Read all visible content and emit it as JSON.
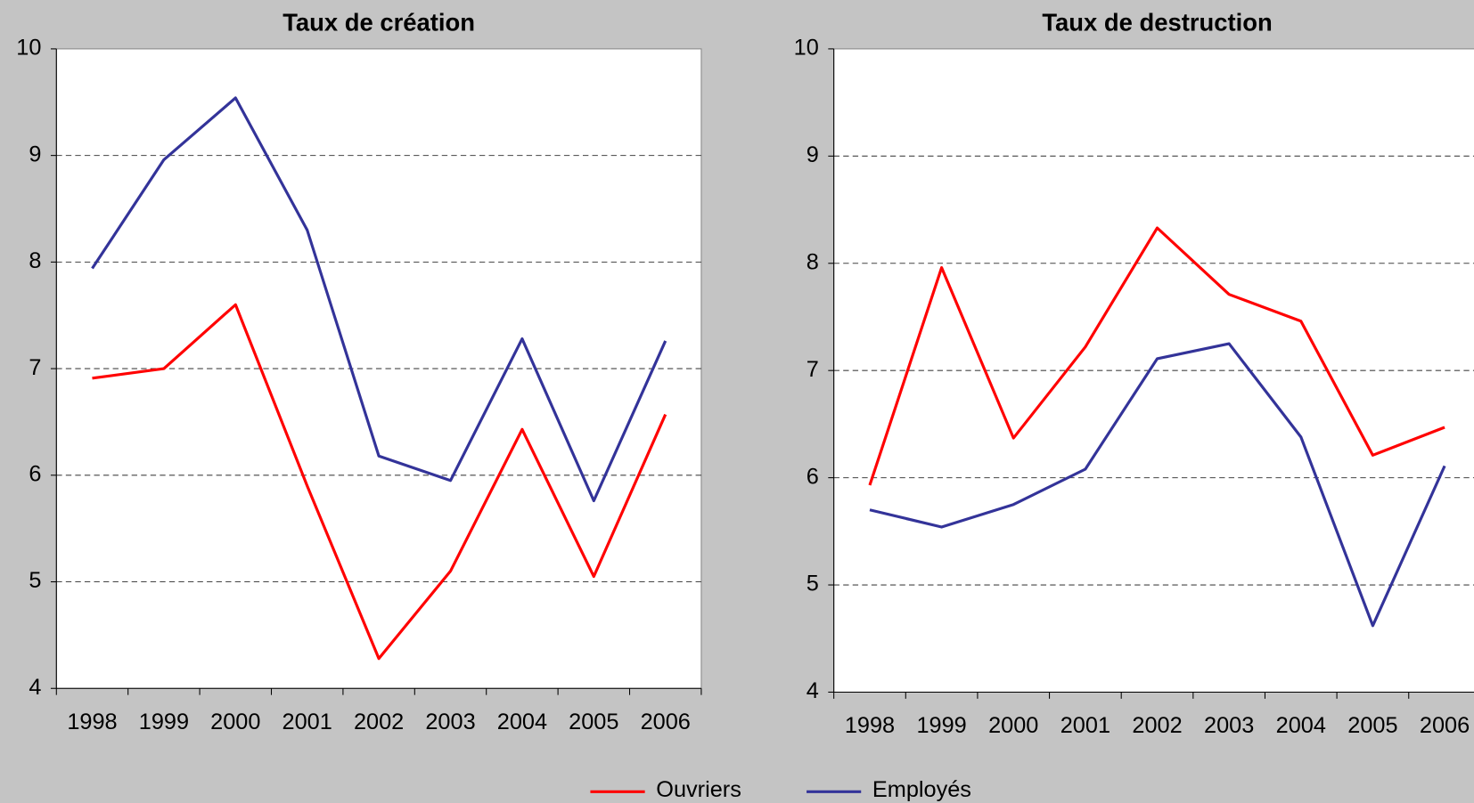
{
  "chart_data": [
    {
      "type": "line",
      "title": "Taux de création",
      "categories": [
        "1998",
        "1999",
        "2000",
        "2001",
        "2002",
        "2003",
        "2004",
        "2005",
        "2006"
      ],
      "series": [
        {
          "name": "Ouvriers",
          "color": "#ff0000",
          "values": [
            6.91,
            7.0,
            7.6,
            5.9,
            4.28,
            5.1,
            6.43,
            5.05,
            6.57
          ]
        },
        {
          "name": "Employés",
          "color": "#333399",
          "values": [
            7.94,
            8.96,
            9.54,
            8.3,
            6.18,
            5.95,
            7.28,
            5.76,
            7.26
          ]
        }
      ],
      "ylim": [
        4,
        10
      ],
      "yticks": [
        4,
        5,
        6,
        7,
        8,
        9,
        10
      ],
      "grid": true
    },
    {
      "type": "line",
      "title": "Taux de destruction",
      "categories": [
        "1998",
        "1999",
        "2000",
        "2001",
        "2002",
        "2003",
        "2004",
        "2005",
        "2006"
      ],
      "series": [
        {
          "name": "Ouvriers",
          "color": "#ff0000",
          "values": [
            5.93,
            7.96,
            6.37,
            7.22,
            8.33,
            7.71,
            7.46,
            6.21,
            6.47
          ]
        },
        {
          "name": "Employés",
          "color": "#333399",
          "values": [
            5.7,
            5.54,
            5.75,
            6.08,
            7.11,
            7.25,
            6.38,
            4.62,
            6.11
          ]
        }
      ],
      "ylim": [
        4,
        10
      ],
      "yticks": [
        4,
        5,
        6,
        7,
        8,
        9,
        10
      ],
      "grid": true
    }
  ]
}
